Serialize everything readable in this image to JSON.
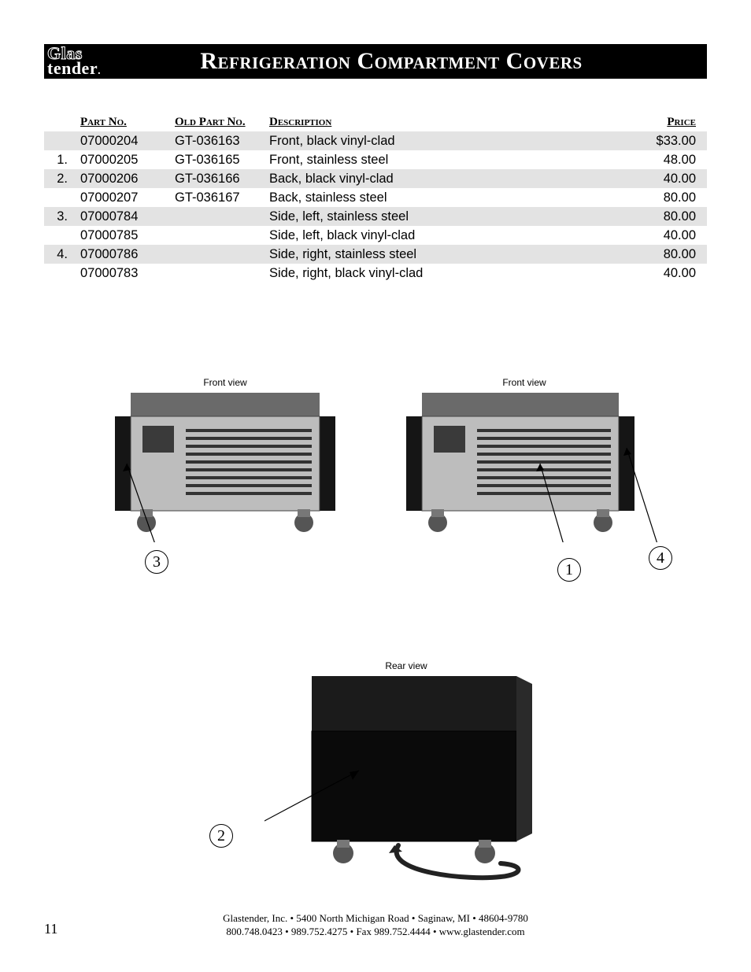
{
  "logo": {
    "top": "Glas",
    "bottom": "tender",
    "dot": "."
  },
  "title": "Refrigeration Compartment Covers",
  "table": {
    "headers": {
      "idx": "",
      "part_no": "Part No.",
      "old_part_no": "Old Part No.",
      "description": "Description",
      "price": "Price"
    },
    "rows": [
      {
        "idx": "",
        "part_no": "07000204",
        "old_part_no": "GT-036163",
        "description": "Front, black vinyl-clad",
        "price": "$33.00",
        "shaded": true
      },
      {
        "idx": "1.",
        "part_no": "07000205",
        "old_part_no": "GT-036165",
        "description": "Front, stainless steel",
        "price": "48.00",
        "shaded": false
      },
      {
        "idx": "2.",
        "part_no": "07000206",
        "old_part_no": "GT-036166",
        "description": "Back, black vinyl-clad",
        "price": "40.00",
        "shaded": true
      },
      {
        "idx": "",
        "part_no": "07000207",
        "old_part_no": "GT-036167",
        "description": "Back, stainless steel",
        "price": "80.00",
        "shaded": false
      },
      {
        "idx": "3.",
        "part_no": "07000784",
        "old_part_no": "",
        "description": "Side, left, stainless steel",
        "price": "80.00",
        "shaded": true
      },
      {
        "idx": "",
        "part_no": "07000785",
        "old_part_no": "",
        "description": "Side, left, black vinyl-clad",
        "price": "40.00",
        "shaded": false
      },
      {
        "idx": "4.",
        "part_no": "07000786",
        "old_part_no": "",
        "description": "Side, right, stainless steel",
        "price": "80.00",
        "shaded": true
      },
      {
        "idx": "",
        "part_no": "07000783",
        "old_part_no": "",
        "description": "Side, right, black vinyl-clad",
        "price": "40.00",
        "shaded": false
      }
    ]
  },
  "figures": {
    "front_left": {
      "caption": "Front view",
      "callout": "3"
    },
    "front_right": {
      "caption": "Front view",
      "callouts": [
        "1",
        "4"
      ]
    },
    "rear": {
      "caption": "Rear view",
      "callout": "2"
    }
  },
  "footer": {
    "line1": "Glastender, Inc.  •  5400 North Michigan Road  •  Saginaw, MI  •  48604-9780",
    "line2": "800.748.0423  •  989.752.4275  •  Fax 989.752.4444  •  www.glastender.com"
  },
  "page_number": "11",
  "colors": {
    "bar_bg": "#000000",
    "bar_fg": "#ffffff",
    "row_shade": "#e3e3e3",
    "page_bg": "#ffffff"
  }
}
